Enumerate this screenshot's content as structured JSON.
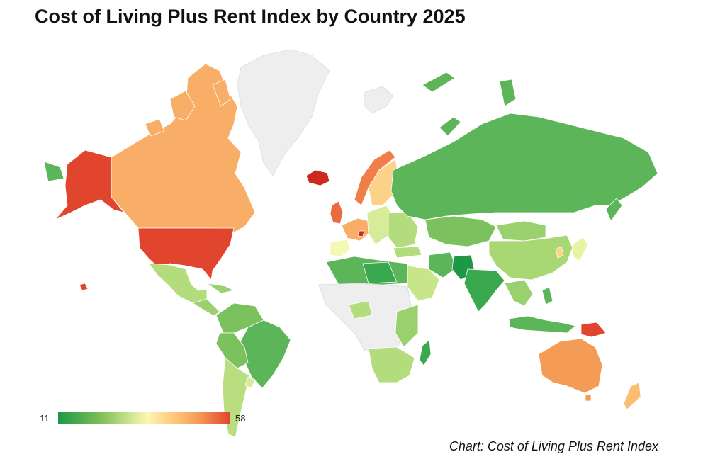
{
  "title": "Cost of Living Plus Rent Index by Country 2025",
  "legend": {
    "min_label": "11",
    "max_label": "58",
    "min_value": 11,
    "max_value": 58
  },
  "colors": {
    "low": "#1e9846",
    "mid": "#fdf6b2",
    "high": "#e2452d",
    "no_data": "#eeeeee"
  },
  "source": "Chart: Cost of Living Plus Rent Index"
}
